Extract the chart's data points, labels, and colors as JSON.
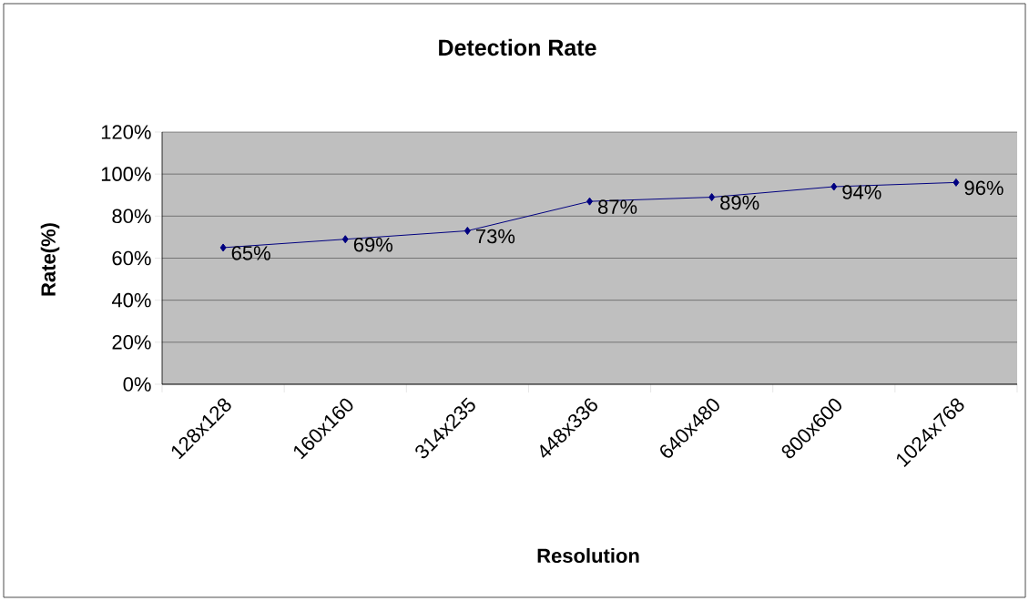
{
  "chart_data": {
    "type": "line",
    "title": "Detection Rate",
    "xlabel": "Resolution",
    "ylabel": "Rate(%)",
    "categories": [
      "128x128",
      "160x160",
      "314x235",
      "448x336",
      "640x480",
      "800x600",
      "1024x768"
    ],
    "series": [
      {
        "color": "#000080",
        "values": [
          65,
          69,
          73,
          87,
          89,
          94,
          96
        ],
        "value_labels": [
          "65%",
          "69%",
          "73%",
          "87%",
          "89%",
          "94%",
          "96%"
        ]
      }
    ],
    "ylim": [
      0,
      120
    ],
    "yticks": [
      {
        "value": 0,
        "label": "0%"
      },
      {
        "value": 20,
        "label": "20%"
      },
      {
        "value": 40,
        "label": "40%"
      },
      {
        "value": 60,
        "label": "60%"
      },
      {
        "value": 80,
        "label": "80%"
      },
      {
        "value": 100,
        "label": "100%"
      },
      {
        "value": 120,
        "label": "120%"
      }
    ],
    "grid": "y",
    "legend": false,
    "marker": "diamond",
    "line_style": "solid"
  }
}
